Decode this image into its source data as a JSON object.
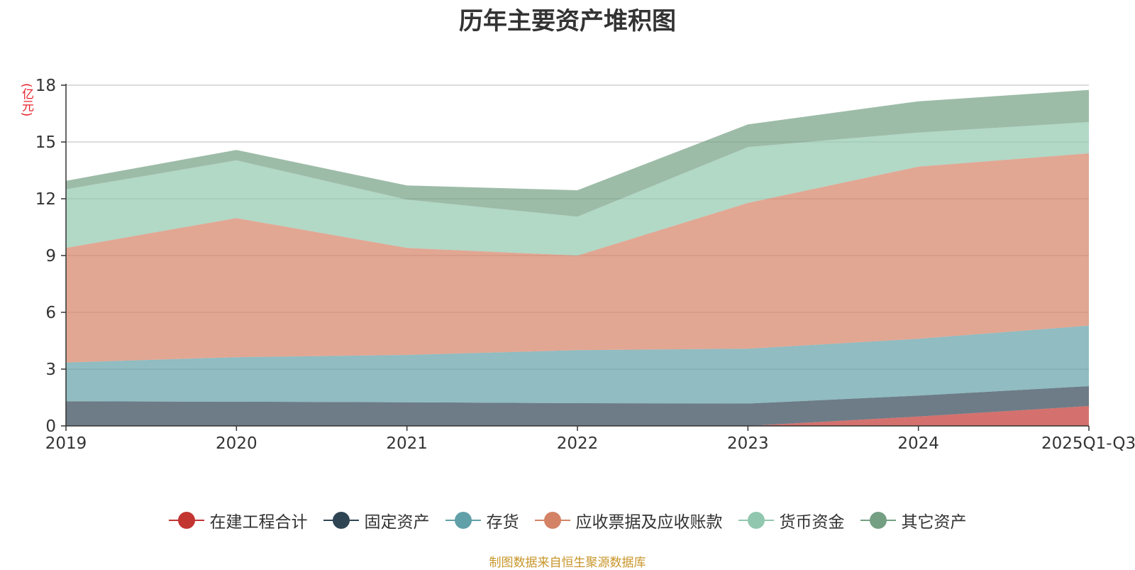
{
  "chart_data": {
    "type": "area",
    "stacked": true,
    "title": "历年主要资产堆积图",
    "unit_label": "(亿元)",
    "categories": [
      "2019",
      "2020",
      "2021",
      "2022",
      "2023",
      "2024",
      "2025Q1-Q3"
    ],
    "ylim": [
      0,
      18
    ],
    "yticks": [
      0,
      3,
      6,
      9,
      12,
      15,
      18
    ],
    "grid": true,
    "legend_position": "bottom",
    "series": [
      {
        "name": "在建工程合计",
        "color": "#c23531",
        "values": [
          0,
          0,
          0,
          0,
          0,
          0.5,
          1.05
        ]
      },
      {
        "name": "固定资产",
        "color": "#2f4554",
        "values": [
          1.3,
          1.28,
          1.25,
          1.2,
          1.18,
          1.1,
          1.05
        ]
      },
      {
        "name": "存货",
        "color": "#61a0a8",
        "values": [
          2.05,
          2.35,
          2.5,
          2.8,
          2.9,
          3.0,
          3.2
        ]
      },
      {
        "name": "应收票据及应收账款",
        "color": "#d48265",
        "values": [
          6.05,
          7.35,
          5.65,
          5.0,
          7.7,
          9.1,
          9.1
        ]
      },
      {
        "name": "货币资金",
        "color": "#91c7ae",
        "values": [
          3.1,
          3.05,
          2.55,
          2.05,
          2.95,
          1.8,
          1.65
        ]
      },
      {
        "name": "其它资产",
        "color": "#749f83",
        "values": [
          0.45,
          0.55,
          0.75,
          1.4,
          1.2,
          1.65,
          1.7
        ]
      }
    ]
  },
  "source_note": "制图数据来自恒生聚源数据库"
}
